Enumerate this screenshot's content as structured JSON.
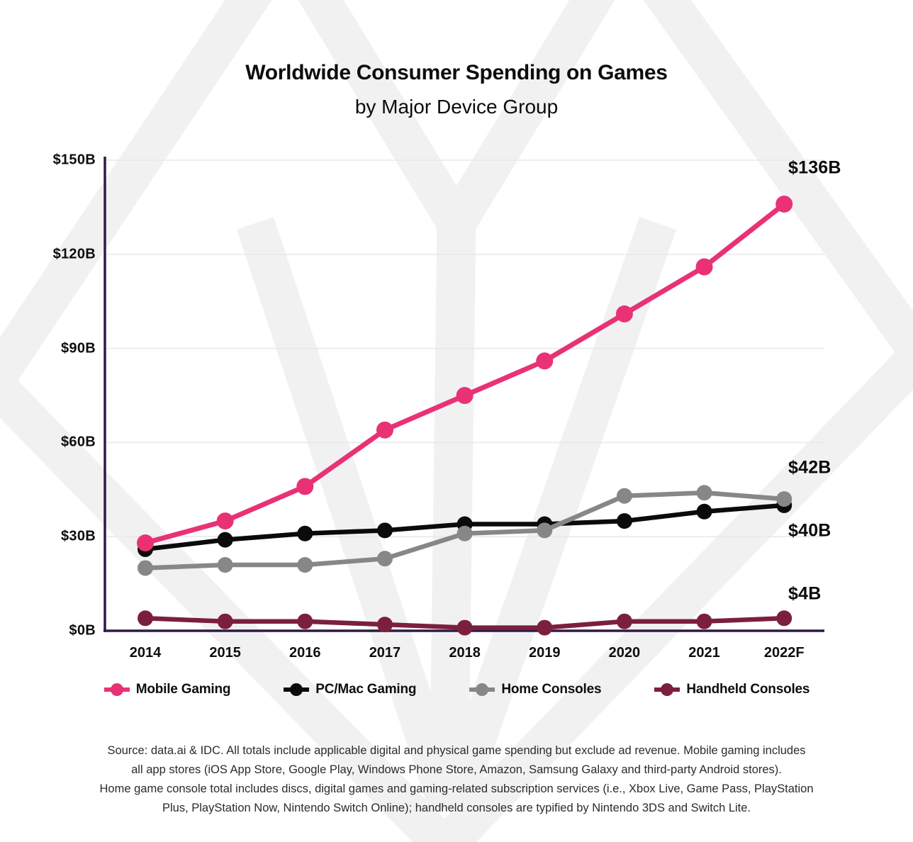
{
  "header": {
    "title": "Worldwide Consumer Spending on Games",
    "subtitle": "by Major Device Group"
  },
  "chart_data": {
    "type": "line",
    "x_categories": [
      "2014",
      "2015",
      "2016",
      "2017",
      "2018",
      "2019",
      "2020",
      "2021",
      "2022F"
    ],
    "series": [
      {
        "name": "Mobile Gaming",
        "color": "#E93275",
        "values": [
          28,
          35,
          46,
          64,
          75,
          86,
          101,
          116,
          136
        ]
      },
      {
        "name": "PC/Mac Gaming",
        "color": "#0B0B0B",
        "values": [
          26,
          29,
          31,
          32,
          34,
          34,
          35,
          38,
          40
        ]
      },
      {
        "name": "Home Consoles",
        "color": "#878787",
        "values": [
          20,
          21,
          21,
          23,
          31,
          32,
          43,
          44,
          42
        ]
      },
      {
        "name": "Handheld Consoles",
        "color": "#7C1F3E",
        "values": [
          4,
          3,
          3,
          2,
          1,
          1,
          3,
          3,
          4
        ]
      }
    ],
    "ylim": [
      0,
      150
    ],
    "y_ticks": [
      {
        "value": 0,
        "label": "$0B"
      },
      {
        "value": 30,
        "label": "$30B"
      },
      {
        "value": 60,
        "label": "$60B"
      },
      {
        "value": 90,
        "label": "$90B"
      },
      {
        "value": 120,
        "label": "$120B"
      },
      {
        "value": 150,
        "label": "$150B"
      }
    ],
    "grid": "horizontal",
    "legend_position": "bottom",
    "annotations": [
      {
        "label": "$136B",
        "series": "Mobile Gaming"
      },
      {
        "label": "$42B",
        "series": "Home Consoles"
      },
      {
        "label": "$40B",
        "series": "PC/Mac Gaming"
      },
      {
        "label": "$4B",
        "series": "Handheld Consoles"
      }
    ]
  },
  "footer": {
    "source_lines": [
      "Source: data.ai & IDC. All totals include applicable digital and physical game spending but exclude ad revenue. Mobile gaming includes",
      "all app stores (iOS App Store, Google Play, Windows Phone Store, Amazon, Samsung Galaxy and third-party Android stores).",
      "Home game console total includes discs, digital games and gaming-related subscription services (i.e., Xbox Live, Game Pass, PlayStation",
      "Plus, PlayStation Now, Nintendo Switch Online); handheld consoles are typified by Nintendo 3DS and Switch Lite."
    ]
  },
  "colors": {
    "axis": "#2D1B45",
    "gridline": "#E9E9E9",
    "watermark": "#F1F1F1"
  }
}
